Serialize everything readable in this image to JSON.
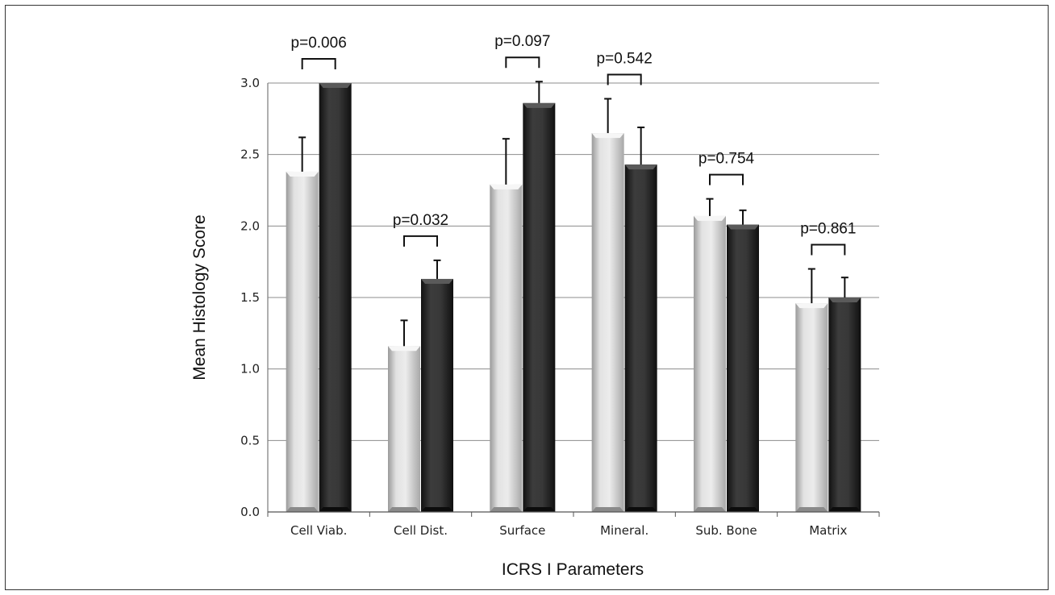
{
  "chart_data": {
    "type": "bar",
    "xlabel": "ICRS I Parameters",
    "ylabel": "Mean Histology Score",
    "ylim": [
      0,
      3.0
    ],
    "yticks": [
      "0.0",
      "0.5",
      "1.0",
      "1.5",
      "2.0",
      "2.5",
      "3.0"
    ],
    "grid": true,
    "categories": [
      "Cell Viab.",
      "Cell Dist.",
      "Surface",
      "Mineral.",
      "Sub. Bone",
      "Matrix"
    ],
    "series": [
      {
        "color": "#d4d4d4",
        "values": [
          2.38,
          1.16,
          2.29,
          2.65,
          2.07,
          1.46
        ],
        "errors": [
          0.24,
          0.18,
          0.32,
          0.24,
          0.12,
          0.24
        ]
      },
      {
        "color": "#333333",
        "values": [
          3.0,
          1.63,
          2.86,
          2.43,
          2.01,
          1.5
        ],
        "errors": [
          0.0,
          0.13,
          0.15,
          0.26,
          0.1,
          0.14
        ]
      }
    ],
    "annotations": [
      "p=0.006",
      "p=0.032",
      "p=0.097",
      "p=0.542",
      "p=0.754",
      "p=0.861"
    ]
  }
}
